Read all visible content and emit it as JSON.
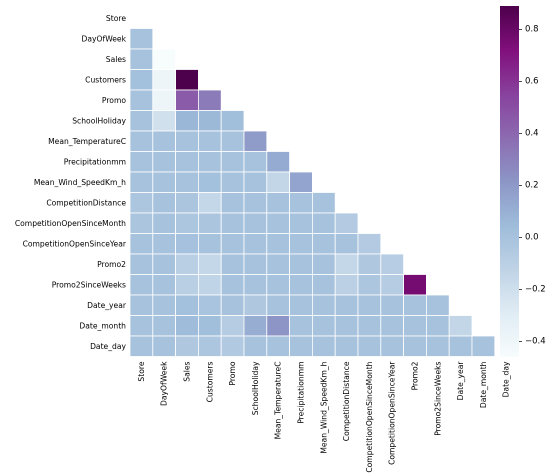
{
  "chart_data": {
    "type": "heatmap",
    "title": "",
    "mask": "upper-triangle-and-diagonal",
    "variables": [
      "Store",
      "DayOfWeek",
      "Sales",
      "Customers",
      "Promo",
      "SchoolHoliday",
      "Mean_TemperatureC",
      "Precipitationmm",
      "Mean_Wind_SpeedKm_h",
      "CompetitionDistance",
      "CompetitionOpenSinceMonth",
      "CompetitionOpenSinceYear",
      "Promo2",
      "Promo2SinceWeeks",
      "Date_year",
      "Date_month",
      "Date_day"
    ],
    "matrix": [
      [],
      [
        0.0
      ],
      [
        0.0,
        -0.46
      ],
      [
        0.02,
        -0.39,
        0.89
      ],
      [
        0.0,
        -0.39,
        0.45,
        0.32
      ],
      [
        0.0,
        -0.21,
        0.07,
        0.06,
        0.03
      ],
      [
        0.0,
        0.0,
        0.0,
        0.0,
        0.0,
        0.19
      ],
      [
        0.0,
        0.0,
        0.0,
        0.0,
        0.0,
        0.0,
        0.12
      ],
      [
        0.0,
        0.0,
        0.0,
        0.02,
        0.0,
        0.0,
        -0.14,
        0.15
      ],
      [
        -0.03,
        0.0,
        -0.02,
        -0.15,
        0.0,
        0.0,
        0.0,
        0.0,
        0.0
      ],
      [
        -0.02,
        0.0,
        -0.03,
        -0.02,
        0.0,
        0.0,
        0.0,
        0.0,
        0.0,
        -0.06
      ],
      [
        0.0,
        0.0,
        0.01,
        0.0,
        0.0,
        0.0,
        0.0,
        0.0,
        0.0,
        0.0,
        -0.06
      ],
      [
        0.0,
        0.0,
        -0.09,
        -0.15,
        0.0,
        0.0,
        0.0,
        0.0,
        0.0,
        -0.15,
        -0.04,
        -0.08
      ],
      [
        0.0,
        0.0,
        -0.09,
        -0.13,
        0.0,
        0.0,
        0.0,
        0.0,
        0.0,
        -0.1,
        -0.03,
        -0.07,
        0.76
      ],
      [
        0.0,
        0.0,
        0.02,
        -0.01,
        0.0,
        -0.04,
        0.0,
        0.0,
        0.0,
        0.0,
        0.0,
        0.0,
        0.0,
        0.0
      ],
      [
        0.0,
        0.0,
        0.04,
        0.03,
        -0.07,
        0.11,
        0.22,
        0.0,
        0.0,
        0.0,
        0.0,
        0.0,
        0.0,
        0.0,
        -0.14
      ],
      [
        0.0,
        0.0,
        -0.04,
        -0.03,
        -0.05,
        0.0,
        0.0,
        0.0,
        0.0,
        0.0,
        0.0,
        0.0,
        0.0,
        0.0,
        0.0,
        0.0
      ]
    ],
    "vmin": -0.46,
    "vmax": 0.89,
    "colormap": "BuPu",
    "colormap_stops": [
      "#f7fcfd",
      "#e0ecf4",
      "#bfd3e6",
      "#9ebcda",
      "#8c96c6",
      "#8c6bb1",
      "#88419d",
      "#810f7c",
      "#4d004b"
    ],
    "colorbar_ticks": [
      0.8,
      0.6,
      0.4,
      0.2,
      0.0,
      -0.2,
      -0.4
    ],
    "colorbar_tick_labels": [
      "0.8",
      "0.6",
      "0.4",
      "0.2",
      "0.0",
      "−0.2",
      "−0.4"
    ]
  }
}
